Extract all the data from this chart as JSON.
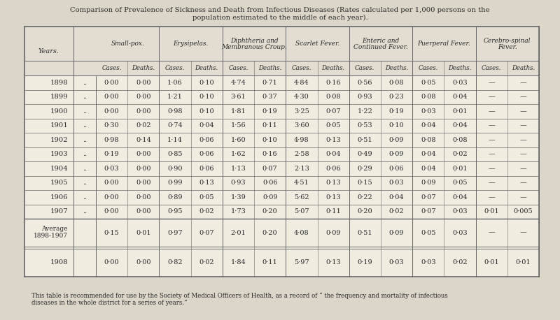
{
  "title_line1": "Comparison of Prevalence of Sickness and Death from Infectious Diseases (Rates calculated per 1,000 persons on the",
  "title_line2": "population estimated to the middle of each year).",
  "footer_line1": "This table is recommended for use by the Society of Medical Officers of Health, as a record of “ the frequency and mortality of infectious",
  "footer_line2": "diseases in the whole district for a series of years.”",
  "col_groups": [
    "Small-pox.",
    "Erysipelas.",
    "Diphtheria and\nMembranous Croup.",
    "Scarlet Fever.",
    "Enteric and\nContinued Fever.",
    "Puerperal Fever.",
    "Cerebro-spinal\nFever."
  ],
  "sub_cols": [
    "Cases.",
    "Deaths."
  ],
  "row_labels": [
    "1898",
    "1899",
    "1900",
    "1901",
    "1902",
    "1903",
    "1904",
    "1905",
    "1906",
    "1907",
    "Average\n1898-1907",
    "1908"
  ],
  "row_dots": [
    "..",
    "..",
    "..",
    "..",
    "..",
    "..",
    "..",
    "..",
    "..",
    "..",
    "",
    ""
  ],
  "data": [
    [
      "0·00",
      "0·00",
      "1·06",
      "0·10",
      "4·74",
      "0·71",
      "4·84",
      "0·16",
      "0·56",
      "0·08",
      "0·05",
      "0·03",
      "—",
      "—"
    ],
    [
      "0·00",
      "0·00",
      "1·21",
      "0·10",
      "3·61",
      "0·37",
      "4·30",
      "0·08",
      "0·93",
      "0·23",
      "0·08",
      "0·04",
      "—",
      "—"
    ],
    [
      "0·00",
      "0·00",
      "0·98",
      "0·10",
      "1·81",
      "0·19",
      "3·25",
      "0·07",
      "1·22",
      "0·19",
      "0·03",
      "0·01",
      "—",
      "—"
    ],
    [
      "0·30",
      "0·02",
      "0·74",
      "0·04",
      "1·56",
      "0·11",
      "3·60",
      "0·05",
      "0·53",
      "0·10",
      "0·04",
      "0·04",
      "—",
      "—"
    ],
    [
      "0·98",
      "0·14",
      "1·14",
      "0·06",
      "1·60",
      "0·10",
      "4·98",
      "0·13",
      "0·51",
      "0·09",
      "0·08",
      "0·08",
      "—",
      "—"
    ],
    [
      "0·19",
      "0·00",
      "0·85",
      "0·06",
      "1·62",
      "0·16",
      "2·58",
      "0·04",
      "0·49",
      "0·09",
      "0·04",
      "0·02",
      "—",
      "—"
    ],
    [
      "0·03",
      "0·00",
      "0·90",
      "0·06",
      "1·13",
      "0·07",
      "2·13",
      "0·06",
      "0·29",
      "0·06",
      "0·04",
      "0·01",
      "—",
      "—"
    ],
    [
      "0·00",
      "0·00",
      "0·99",
      "0·13",
      "0·93",
      "0·06",
      "4·51",
      "0·13",
      "0·15",
      "0·03",
      "0·09",
      "0·05",
      "—",
      "—"
    ],
    [
      "0·00",
      "0·00",
      "0·89",
      "0·05",
      "1·39",
      "0·09",
      "5·62",
      "0·13",
      "0·22",
      "0·04",
      "0·07",
      "0·04",
      "—",
      "—"
    ],
    [
      "0·00",
      "0·00",
      "0·95",
      "0·02",
      "1·73",
      "0·20",
      "5·07",
      "0·11",
      "0·20",
      "0·02",
      "0·07",
      "0·03",
      "0·01",
      "0·005"
    ],
    [
      "0·15",
      "0·01",
      "0·97",
      "0·07",
      "2·01",
      "0·20",
      "4·08",
      "0·09",
      "0·51",
      "0·09",
      "0·05",
      "0·03",
      "—",
      "—"
    ],
    [
      "0·00",
      "0·00",
      "0·82",
      "0·02",
      "1·84",
      "0·11",
      "5·97",
      "0·13",
      "0·19",
      "0·03",
      "0·03",
      "0·02",
      "0·01",
      "0·01"
    ]
  ],
  "bg_color": "#dbd6c8",
  "table_bg": "#f0ece0",
  "header_bg": "#e2ddd0",
  "line_color": "#666666",
  "text_color": "#2a2a2a",
  "title_color": "#2a2a2a"
}
